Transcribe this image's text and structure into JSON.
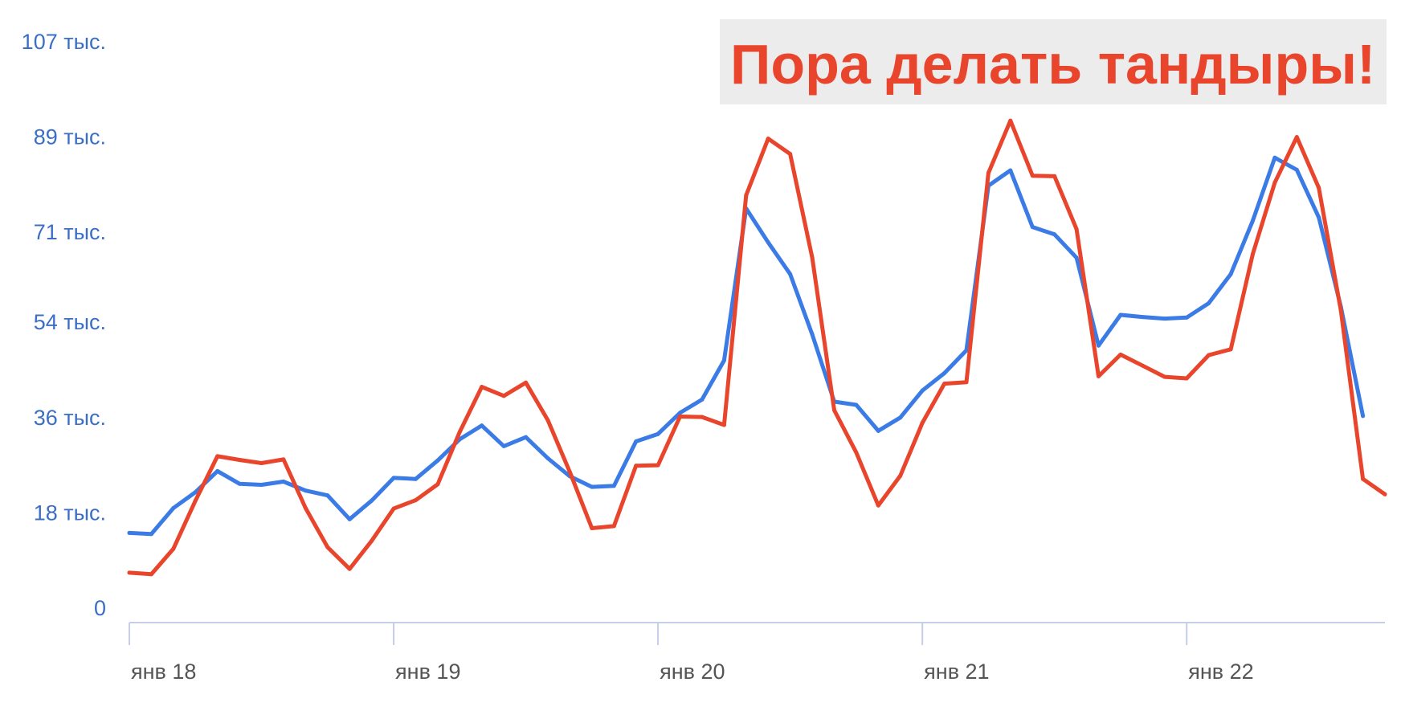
{
  "annotation": "Пора делать тандыры!",
  "colors": {
    "series_blue": "#3b7be6",
    "series_red": "#e8452c",
    "axis": "#c5cde8",
    "ytick": "#3b6fc6",
    "xtick": "#555555",
    "callout_bg": "#ececec"
  },
  "chart_data": {
    "type": "line",
    "title": "",
    "xlabel": "",
    "ylabel": "",
    "ylim": [
      0,
      107000
    ],
    "xlim": [
      0,
      57
    ],
    "grid": false,
    "legend": "none",
    "y_ticks": [
      {
        "value": 0,
        "label": "0"
      },
      {
        "value": 18000,
        "label": "18 тыс."
      },
      {
        "value": 36000,
        "label": "36 тыс."
      },
      {
        "value": 54000,
        "label": "54 тыс."
      },
      {
        "value": 71000,
        "label": "71 тыс."
      },
      {
        "value": 89000,
        "label": "89 тыс."
      },
      {
        "value": 107000,
        "label": "107 тыс."
      }
    ],
    "x_ticks": [
      {
        "value": 0,
        "label": "янв 18"
      },
      {
        "value": 12,
        "label": "янв 19"
      },
      {
        "value": 24,
        "label": "янв 20"
      },
      {
        "value": 36,
        "label": "янв 21"
      },
      {
        "value": 48,
        "label": "янв 22"
      }
    ],
    "series": [
      {
        "color": "#3b7be6",
        "values": [
          14200,
          14000,
          18900,
          21900,
          25900,
          23500,
          23300,
          23900,
          22200,
          21300,
          16800,
          20300,
          24600,
          24400,
          27900,
          31900,
          34500,
          30600,
          32300,
          28300,
          24900,
          22900,
          23100,
          31500,
          32900,
          36900,
          39400,
          46800,
          75500,
          69100,
          63100,
          51700,
          39000,
          38400,
          33500,
          36000,
          41100,
          44400,
          48700,
          79800,
          82700,
          72000,
          70600,
          66200,
          49600,
          55400,
          55000,
          54700,
          54900,
          57600,
          63100,
          73200,
          85100,
          82800,
          73800,
          56900,
          36300
        ]
      },
      {
        "color": "#e8452c",
        "values": [
          6700,
          6400,
          11200,
          20300,
          28700,
          28000,
          27400,
          28100,
          18900,
          11500,
          7400,
          12700,
          18800,
          20400,
          23400,
          33300,
          41800,
          40100,
          42600,
          35500,
          25700,
          15100,
          15500,
          26900,
          27000,
          36200,
          36100,
          34600,
          78000,
          88700,
          85800,
          66200,
          37400,
          29400,
          19400,
          25000,
          35000,
          42400,
          42700,
          82200,
          92100,
          81700,
          81600,
          71600,
          43800,
          47900,
          45800,
          43700,
          43400,
          47800,
          48900,
          66900,
          80400,
          89000,
          79400,
          56200,
          24400,
          21500
        ]
      }
    ]
  }
}
